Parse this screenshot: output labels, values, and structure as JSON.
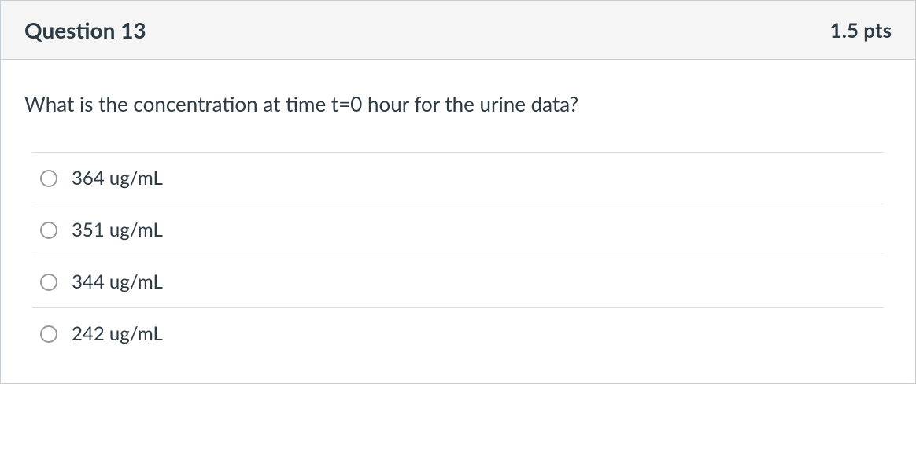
{
  "question": {
    "title": "Question 13",
    "points": "1.5 pts",
    "text": "What is the concentration at time t=0 hour for the urine data?",
    "options": [
      {
        "label": "364 ug/mL",
        "selected": false
      },
      {
        "label": "351 ug/mL",
        "selected": false
      },
      {
        "label": "344 ug/mL",
        "selected": false
      },
      {
        "label": "242 ug/mL",
        "selected": false
      }
    ]
  },
  "colors": {
    "header_bg": "#f5f5f5",
    "border": "#c7cdd1",
    "text": "#2d3b45",
    "option_border": "#ddd",
    "radio_border": "#999"
  }
}
